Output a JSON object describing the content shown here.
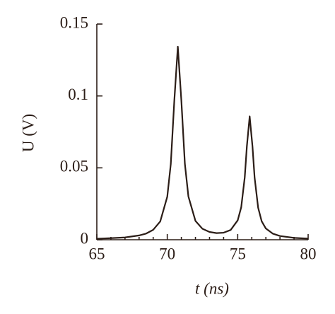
{
  "chart_data": {
    "type": "line",
    "xlabel": "t (ns)",
    "ylabel": "U (V)",
    "x": [
      65,
      66,
      67,
      68,
      68.5,
      69,
      69.5,
      70,
      70.25,
      70.5,
      70.75,
      71,
      71.25,
      71.5,
      72,
      72.5,
      73,
      73.5,
      74,
      74.5,
      75,
      75.25,
      75.5,
      75.65,
      75.85,
      76.05,
      76.2,
      76.45,
      76.7,
      77,
      77.5,
      78,
      79,
      80
    ],
    "series": [
      {
        "color": "#2b1d17",
        "values": [
          0.0007,
          0.0011,
          0.0016,
          0.003,
          0.0043,
          0.0069,
          0.0127,
          0.0299,
          0.0526,
          0.0967,
          0.1343,
          0.0968,
          0.0528,
          0.0301,
          0.0131,
          0.0076,
          0.0054,
          0.0046,
          0.0049,
          0.0068,
          0.0135,
          0.0226,
          0.0434,
          0.0649,
          0.0858,
          0.0648,
          0.0432,
          0.0223,
          0.0129,
          0.0078,
          0.0042,
          0.0026,
          0.0013,
          0.0008
        ]
      }
    ],
    "xlim": [
      65,
      80
    ],
    "xticks": [
      65,
      70,
      75,
      80
    ],
    "xminorticks": [
      66,
      67,
      68,
      69,
      71,
      72,
      73,
      74,
      76,
      77,
      78,
      79
    ],
    "ylim": [
      0,
      0.15
    ],
    "yticks": [
      0,
      0.05,
      0.1,
      0.15
    ]
  }
}
